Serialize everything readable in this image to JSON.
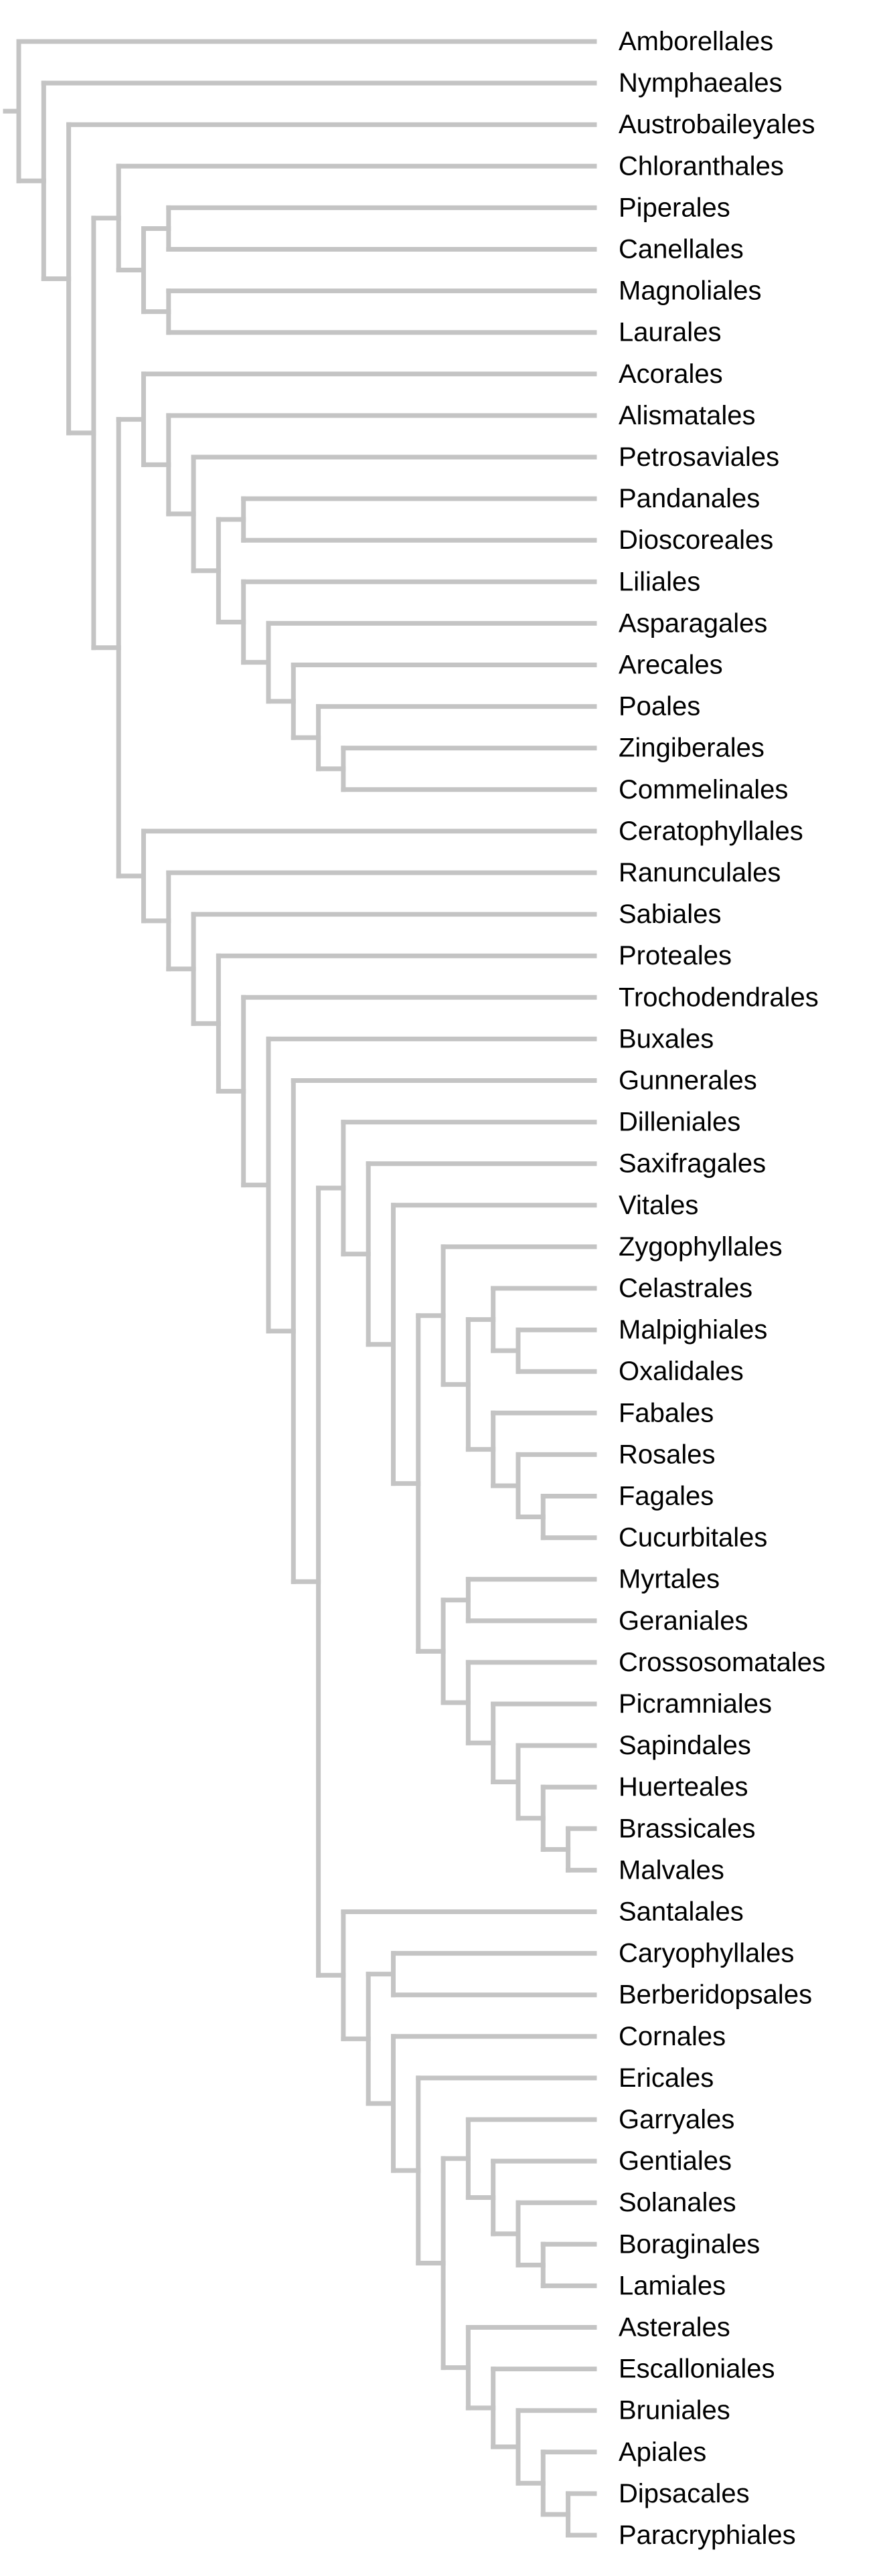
{
  "tree": {
    "line_color": "#c4c4c4",
    "label_color": "#000000",
    "newick": "(Amborellales,(Nymphaeales,(Austrobaileyales,((Chloranthales,((Piperales,Canellales),(Magnoliales,Laurales))),((Acorales,(Alismatales,(Petrosaviales,((Pandanales,Dioscoreales),(Liliales,(Asparagales,(Arecales,(Poales,(Zingiberales,Commelinales))))))))),(Ceratophyllales,(Ranunculales,(Sabiales,(Proteales,(Trochodendrales,(Buxales,(Gunnerales,((Dilleniales,(Saxifragales,(Vitales,((Zygophyllales,((Celastrales,(Malpighiales,Oxalidales)),(Fabales,(Rosales,(Fagales,Cucurbitales))))),((Myrtales,Geraniales),(Crossosomatales,(Picramniales,(Sapindales,(Huerteales,(Brassicales,Malvales)))))))))),(Santalales,((Caryophyllales,Berberidopsales),(Cornales,(Ericales,((Garryales,(Gentiales,(Solanales,(Boraginales,Lamiales)))),(Asterales,(Escalloniales,(Bruniales,(Apiales,(Dipsacales,Paracryphiales)))))))))))))))))))))))"
  }
}
